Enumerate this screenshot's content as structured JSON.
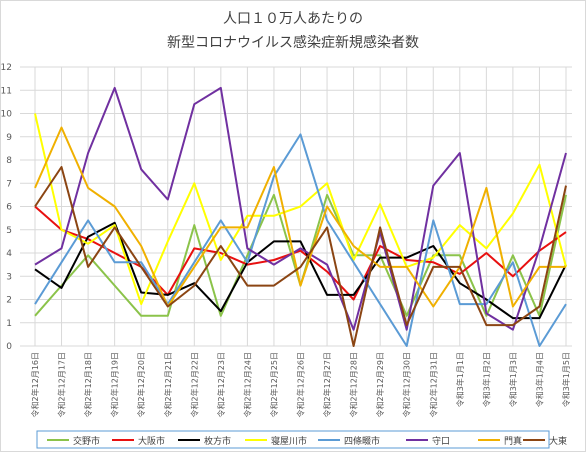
{
  "chart_data": {
    "type": "line",
    "title_line1": "人口１０万人あたりの",
    "title_line2": "新型コロナウイルス感染症新規感染者数",
    "categories": [
      "令和2年12月16日",
      "令和2年12月17日",
      "令和2年12月18日",
      "令和2年12月19日",
      "令和2年12月20日",
      "令和2年12月21日",
      "令和2年12月22日",
      "令和2年12月23日",
      "令和2年12月24日",
      "令和2年12月25日",
      "令和2年12月26日",
      "令和2年12月27日",
      "令和2年12月28日",
      "令和2年12月29日",
      "令和2年12月30日",
      "令和2年12月31日",
      "令和3年1月1日",
      "令和3年1月2日",
      "令和3年1月3日",
      "令和3年1月4日",
      "令和3年1月5日"
    ],
    "ylim": [
      0,
      12
    ],
    "yticks": [
      0,
      1,
      2,
      3,
      4,
      5,
      6,
      7,
      8,
      9,
      10,
      11,
      12
    ],
    "grid": true,
    "legend_position": "bottom",
    "series": [
      {
        "name": "交野市",
        "color": "#8bc34a",
        "values": [
          1.3,
          2.6,
          3.9,
          2.6,
          1.3,
          1.3,
          5.2,
          1.3,
          3.9,
          6.5,
          2.6,
          6.5,
          3.9,
          3.9,
          1.3,
          3.9,
          3.9,
          1.3,
          3.9,
          1.3,
          6.5
        ]
      },
      {
        "name": "大阪市",
        "color": "#e81010",
        "values": [
          6.0,
          5.0,
          4.6,
          4.0,
          3.4,
          2.2,
          4.2,
          4.0,
          3.5,
          3.7,
          4.1,
          3.2,
          2.0,
          4.3,
          3.7,
          3.6,
          3.1,
          4.0,
          3.0,
          4.1,
          4.9
        ]
      },
      {
        "name": "枚方市",
        "color": "#000000",
        "values": [
          3.3,
          2.5,
          4.7,
          5.3,
          2.3,
          2.2,
          2.7,
          1.5,
          3.6,
          4.5,
          4.5,
          2.2,
          2.2,
          3.8,
          3.8,
          4.3,
          2.7,
          2.0,
          1.2,
          1.2,
          3.5
        ]
      },
      {
        "name": "寝屋川市",
        "color": "#ffff00",
        "values": [
          10.0,
          5.0,
          4.4,
          5.2,
          1.8,
          4.5,
          7.0,
          3.7,
          5.6,
          5.6,
          6.0,
          7.0,
          3.7,
          6.1,
          3.4,
          3.8,
          5.2,
          4.2,
          5.7,
          7.8,
          3.4
        ]
      },
      {
        "name": "四條畷市",
        "color": "#5b9bd5",
        "values": [
          1.8,
          3.6,
          5.4,
          3.6,
          3.6,
          1.8,
          3.6,
          5.4,
          3.6,
          7.3,
          9.1,
          5.4,
          3.6,
          1.8,
          0.0,
          5.4,
          1.8,
          1.8,
          3.6,
          0.0,
          1.8
        ]
      },
      {
        "name": "守口",
        "color": "#7030a0",
        "values": [
          3.5,
          4.2,
          8.3,
          11.1,
          7.6,
          6.3,
          10.4,
          11.1,
          4.2,
          3.5,
          4.2,
          3.5,
          0.7,
          4.9,
          0.7,
          6.9,
          8.3,
          1.4,
          0.7,
          4.2,
          8.3
        ]
      },
      {
        "name": "門真",
        "color": "#f0b000",
        "values": [
          6.8,
          9.4,
          6.8,
          6.0,
          4.3,
          1.7,
          3.4,
          5.1,
          5.1,
          7.7,
          2.6,
          6.0,
          4.3,
          3.4,
          3.4,
          1.7,
          3.4,
          6.8,
          1.7,
          3.4,
          3.4
        ]
      },
      {
        "name": "大東",
        "color": "#8b4513",
        "values": [
          6.0,
          7.7,
          3.4,
          5.1,
          3.4,
          1.7,
          2.6,
          4.3,
          2.6,
          2.6,
          3.4,
          5.1,
          0.0,
          5.1,
          0.9,
          3.4,
          3.4,
          0.9,
          0.9,
          1.7,
          6.9
        ]
      }
    ]
  }
}
